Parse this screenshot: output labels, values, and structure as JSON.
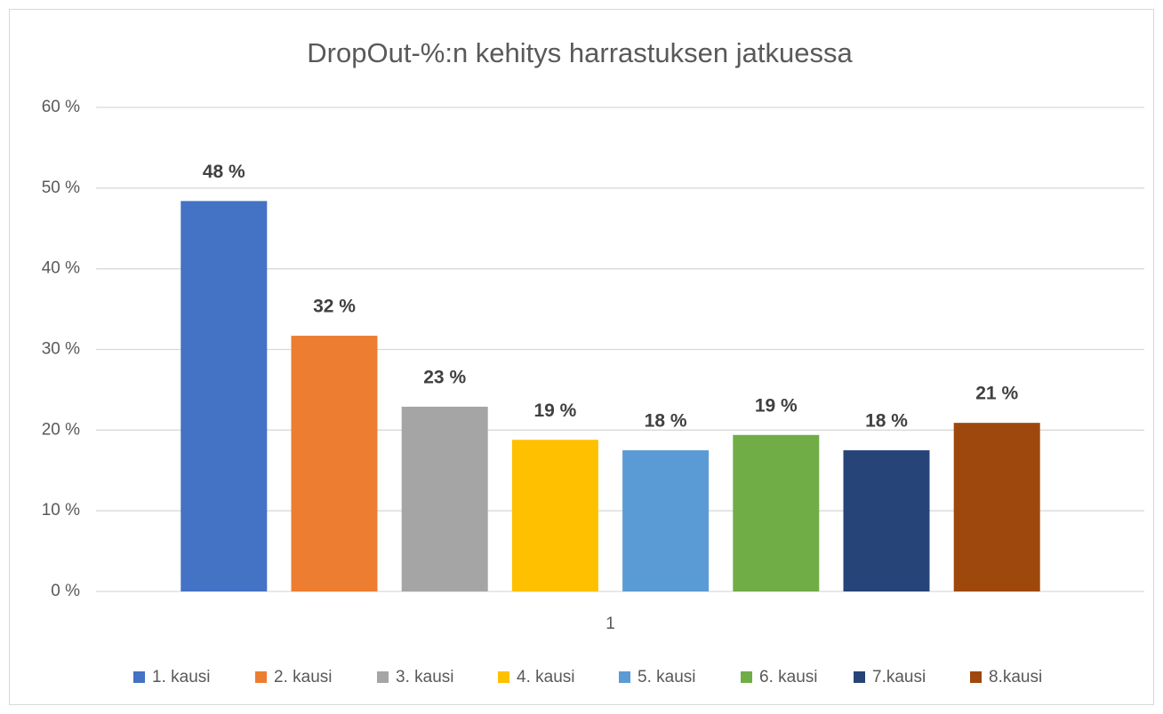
{
  "chart_data": {
    "type": "bar",
    "title": "DropOut-%:n kehitys harrastuksen jatkuessa",
    "categories": [
      "1"
    ],
    "series": [
      {
        "name": "1. kausi",
        "color": "#4472c4",
        "values": [
          48.4
        ],
        "value_labels": [
          "48 %"
        ]
      },
      {
        "name": "2. kausi",
        "color": "#ed7d31",
        "values": [
          31.7
        ],
        "value_labels": [
          "32 %"
        ]
      },
      {
        "name": "3. kausi",
        "color": "#a5a5a5",
        "values": [
          22.9
        ],
        "value_labels": [
          "23 %"
        ]
      },
      {
        "name": "4. kausi",
        "color": "#ffc000",
        "values": [
          18.8
        ],
        "value_labels": [
          "19 %"
        ]
      },
      {
        "name": "5. kausi",
        "color": "#5b9bd5",
        "values": [
          17.5
        ],
        "value_labels": [
          "18 %"
        ]
      },
      {
        "name": "6. kausi",
        "color": "#70ad47",
        "values": [
          19.4
        ],
        "value_labels": [
          "19 %"
        ]
      },
      {
        "name": "7.kausi",
        "color": "#264478",
        "values": [
          17.5
        ],
        "value_labels": [
          "18 %"
        ]
      },
      {
        "name": "8.kausi",
        "color": "#9e480e",
        "values": [
          20.9
        ],
        "value_labels": [
          "21 %"
        ]
      }
    ],
    "ylim": [
      0,
      60
    ],
    "yticks": [
      {
        "value": 0,
        "label": "0 %"
      },
      {
        "value": 10,
        "label": "10 %"
      },
      {
        "value": 20,
        "label": "20 %"
      },
      {
        "value": 30,
        "label": "30 %"
      },
      {
        "value": 40,
        "label": "40 %"
      },
      {
        "value": 50,
        "label": "50 %"
      },
      {
        "value": 60,
        "label": "60 %"
      }
    ],
    "grid": true,
    "legend": "bottom"
  }
}
